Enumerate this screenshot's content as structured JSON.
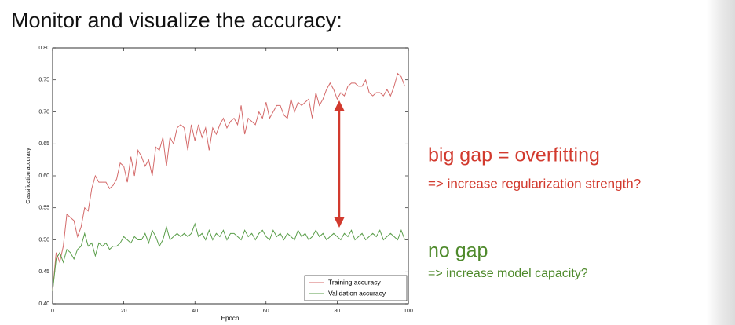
{
  "slide_title": "Monitor and visualize the accuracy:",
  "annotations": [
    {
      "text": "big gap = overfitting",
      "color": "#d23a2e"
    },
    {
      "text": "=> increase regularization strength?",
      "color": "#d23a2e"
    },
    {
      "text": "no gap",
      "color": "#4f8a2c"
    },
    {
      "text": "=> increase model capacity?",
      "color": "#4f8a2c"
    }
  ],
  "chart_data": {
    "type": "line",
    "xlabel": "Epoch",
    "ylabel": "Classification accuracy",
    "xlim": [
      0,
      100
    ],
    "ylim": [
      0.4,
      0.8
    ],
    "xticks": [
      0,
      20,
      40,
      60,
      80,
      100
    ],
    "yticks": [
      {
        "value": 0.4,
        "label": "0.40"
      },
      0.45,
      {
        "value": 0.5,
        "label": "0.50"
      },
      0.55,
      {
        "value": 0.6,
        "label": "0.60"
      },
      0.65,
      {
        "value": 0.7,
        "label": "0.70"
      },
      0.75,
      {
        "value": 0.8,
        "label": "0.80"
      }
    ],
    "legend": "lower right",
    "x": [
      0,
      1,
      2,
      3,
      4,
      5,
      6,
      7,
      8,
      9,
      10,
      11,
      12,
      13,
      14,
      15,
      16,
      17,
      18,
      19,
      20,
      21,
      22,
      23,
      24,
      25,
      26,
      27,
      28,
      29,
      30,
      31,
      32,
      33,
      34,
      35,
      36,
      37,
      38,
      39,
      40,
      41,
      42,
      43,
      44,
      45,
      46,
      47,
      48,
      49,
      50,
      51,
      52,
      53,
      54,
      55,
      56,
      57,
      58,
      59,
      60,
      61,
      62,
      63,
      64,
      65,
      66,
      67,
      68,
      69,
      70,
      71,
      72,
      73,
      74,
      75,
      76,
      77,
      78,
      79,
      80,
      81,
      82,
      83,
      84,
      85,
      86,
      87,
      88,
      89,
      90,
      91,
      92,
      93,
      94,
      95,
      96,
      97,
      98,
      99
    ],
    "series": [
      {
        "name": "Training accuracy",
        "color": "#d46a6a",
        "values": [
          0.42,
          0.48,
          0.465,
          0.49,
          0.54,
          0.535,
          0.53,
          0.505,
          0.52,
          0.55,
          0.545,
          0.58,
          0.6,
          0.59,
          0.59,
          0.59,
          0.58,
          0.585,
          0.595,
          0.62,
          0.615,
          0.59,
          0.63,
          0.6,
          0.64,
          0.63,
          0.615,
          0.625,
          0.6,
          0.645,
          0.64,
          0.66,
          0.615,
          0.66,
          0.65,
          0.675,
          0.68,
          0.675,
          0.64,
          0.68,
          0.655,
          0.68,
          0.66,
          0.675,
          0.64,
          0.675,
          0.665,
          0.68,
          0.69,
          0.675,
          0.685,
          0.69,
          0.68,
          0.71,
          0.665,
          0.69,
          0.685,
          0.68,
          0.7,
          0.69,
          0.715,
          0.69,
          0.7,
          0.71,
          0.71,
          0.695,
          0.69,
          0.72,
          0.7,
          0.715,
          0.71,
          0.715,
          0.72,
          0.69,
          0.73,
          0.71,
          0.72,
          0.735,
          0.745,
          0.735,
          0.72,
          0.73,
          0.725,
          0.74,
          0.745,
          0.745,
          0.74,
          0.74,
          0.75,
          0.73,
          0.725,
          0.73,
          0.73,
          0.725,
          0.735,
          0.725,
          0.74,
          0.76,
          0.755,
          0.74
        ]
      },
      {
        "name": "Validation accuracy",
        "color": "#5a9e4a",
        "values": [
          0.42,
          0.47,
          0.48,
          0.465,
          0.485,
          0.48,
          0.47,
          0.485,
          0.49,
          0.51,
          0.49,
          0.495,
          0.475,
          0.495,
          0.49,
          0.495,
          0.485,
          0.49,
          0.49,
          0.495,
          0.505,
          0.5,
          0.495,
          0.505,
          0.5,
          0.5,
          0.51,
          0.495,
          0.515,
          0.505,
          0.49,
          0.5,
          0.52,
          0.5,
          0.505,
          0.51,
          0.505,
          0.51,
          0.505,
          0.51,
          0.525,
          0.505,
          0.51,
          0.5,
          0.515,
          0.5,
          0.51,
          0.505,
          0.515,
          0.5,
          0.51,
          0.51,
          0.505,
          0.5,
          0.515,
          0.505,
          0.51,
          0.5,
          0.51,
          0.515,
          0.505,
          0.5,
          0.515,
          0.505,
          0.51,
          0.5,
          0.51,
          0.505,
          0.5,
          0.515,
          0.505,
          0.51,
          0.5,
          0.505,
          0.515,
          0.505,
          0.51,
          0.5,
          0.505,
          0.51,
          0.505,
          0.5,
          0.51,
          0.505,
          0.515,
          0.5,
          0.505,
          0.51,
          0.5,
          0.505,
          0.51,
          0.505,
          0.515,
          0.5,
          0.505,
          0.51,
          0.505,
          0.5,
          0.515,
          0.5
        ]
      }
    ]
  }
}
